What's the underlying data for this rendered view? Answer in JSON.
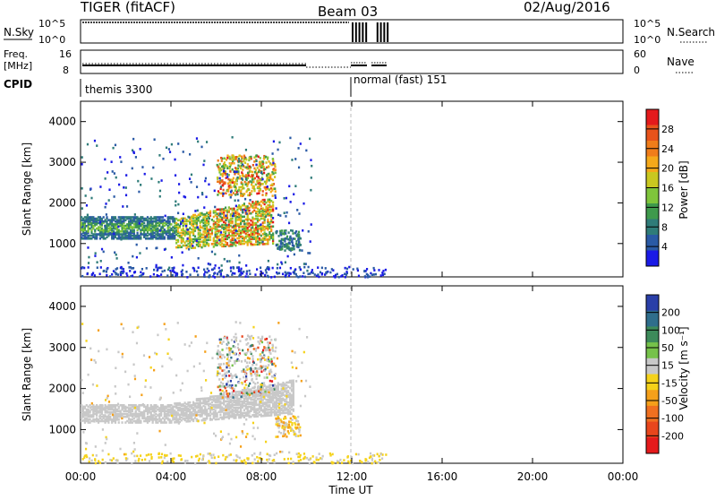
{
  "header": {
    "title": "TIGER (fitACF)",
    "beam": "Beam 03",
    "date": "02/Aug/2016"
  },
  "panels": {
    "nsky": {
      "label": "N.Sky",
      "ytick_top": "10^5",
      "ytick_bottom": "10^0",
      "right_tick_top": "10^5",
      "right_tick_bottom": "10^0",
      "right_label": "N.Search"
    },
    "freq": {
      "label_line1": "Freq.",
      "label_line2": "[MHz]",
      "ytick_top": "16",
      "ytick_bottom": "8",
      "right_tick_top": "60",
      "right_tick_bottom": "0",
      "right_label": "Nave"
    },
    "cpid": {
      "label": "CPID",
      "mode1": "themis 3300",
      "mode2": "normal (fast) 151"
    }
  },
  "colorbars": {
    "power": {
      "label": "Power [dB]",
      "ticks": [
        "28",
        "24",
        "20",
        "16",
        "12",
        "8",
        "4"
      ],
      "colors": [
        "#e41a1c",
        "#e8531b",
        "#f07d1a",
        "#f5a91a",
        "#c9c820",
        "#7fc53b",
        "#3f9a4c",
        "#2f7c79",
        "#2a5aa5",
        "#1a1ae6"
      ]
    },
    "velocity": {
      "label": "Velocity [m s⁻¹]",
      "ticks": [
        "200",
        "100",
        "50",
        "15",
        "-15",
        "-50",
        "-100",
        "-200"
      ],
      "colors": [
        "#2a3fa8",
        "#2f6e8c",
        "#3d8a5a",
        "#76c24a",
        "#c8c8c8",
        "#f5d21a",
        "#f5a01a",
        "#f07020",
        "#e8461c",
        "#e41a1c"
      ]
    }
  },
  "chart_data": [
    {
      "type": "heatmap",
      "name": "power",
      "ylabel": "Slant Range [km]",
      "xlim": [
        "00:00",
        "00:00"
      ],
      "x_ticks": [
        "00:00",
        "04:00",
        "08:00",
        "12:00",
        "16:00",
        "20:00",
        "00:00"
      ],
      "ylim": [
        180,
        4500
      ],
      "y_ticks": [
        1000,
        2000,
        3000,
        4000
      ],
      "color_scale": "Power [dB]",
      "regions": [
        {
          "t0": 0.0,
          "t1": 4.0,
          "r0": 1150,
          "r1": 1650,
          "level": "mixed-8-16"
        },
        {
          "t0": 4.0,
          "t1": 8.5,
          "r0": 900,
          "r1": 2200,
          "level": "mixed-8-28"
        },
        {
          "t0": 6.5,
          "t1": 8.5,
          "r0": 2200,
          "r1": 3100,
          "level": "mixed-8-24"
        },
        {
          "t0": 8.0,
          "t1": 10.5,
          "r0": 200,
          "r1": 400,
          "level": "low-4-8"
        }
      ]
    },
    {
      "type": "heatmap",
      "name": "velocity",
      "ylabel": "Slant Range [km]",
      "xlabel": "Time UT",
      "xlim": [
        "00:00",
        "00:00"
      ],
      "x_ticks": [
        "00:00",
        "04:00",
        "08:00",
        "12:00",
        "16:00",
        "20:00",
        "00:00"
      ],
      "ylim": [
        180,
        4500
      ],
      "y_ticks": [
        1000,
        2000,
        3000,
        4000
      ],
      "color_scale": "Velocity [m s-1]",
      "regions": [
        {
          "t0": 0.0,
          "t1": 9.5,
          "r0": 1200,
          "r1": 2100,
          "level": "near-zero"
        },
        {
          "t0": 6.0,
          "t1": 8.5,
          "r0": 1800,
          "r1": 3300,
          "level": "mixed-negative-positive"
        }
      ]
    }
  ]
}
